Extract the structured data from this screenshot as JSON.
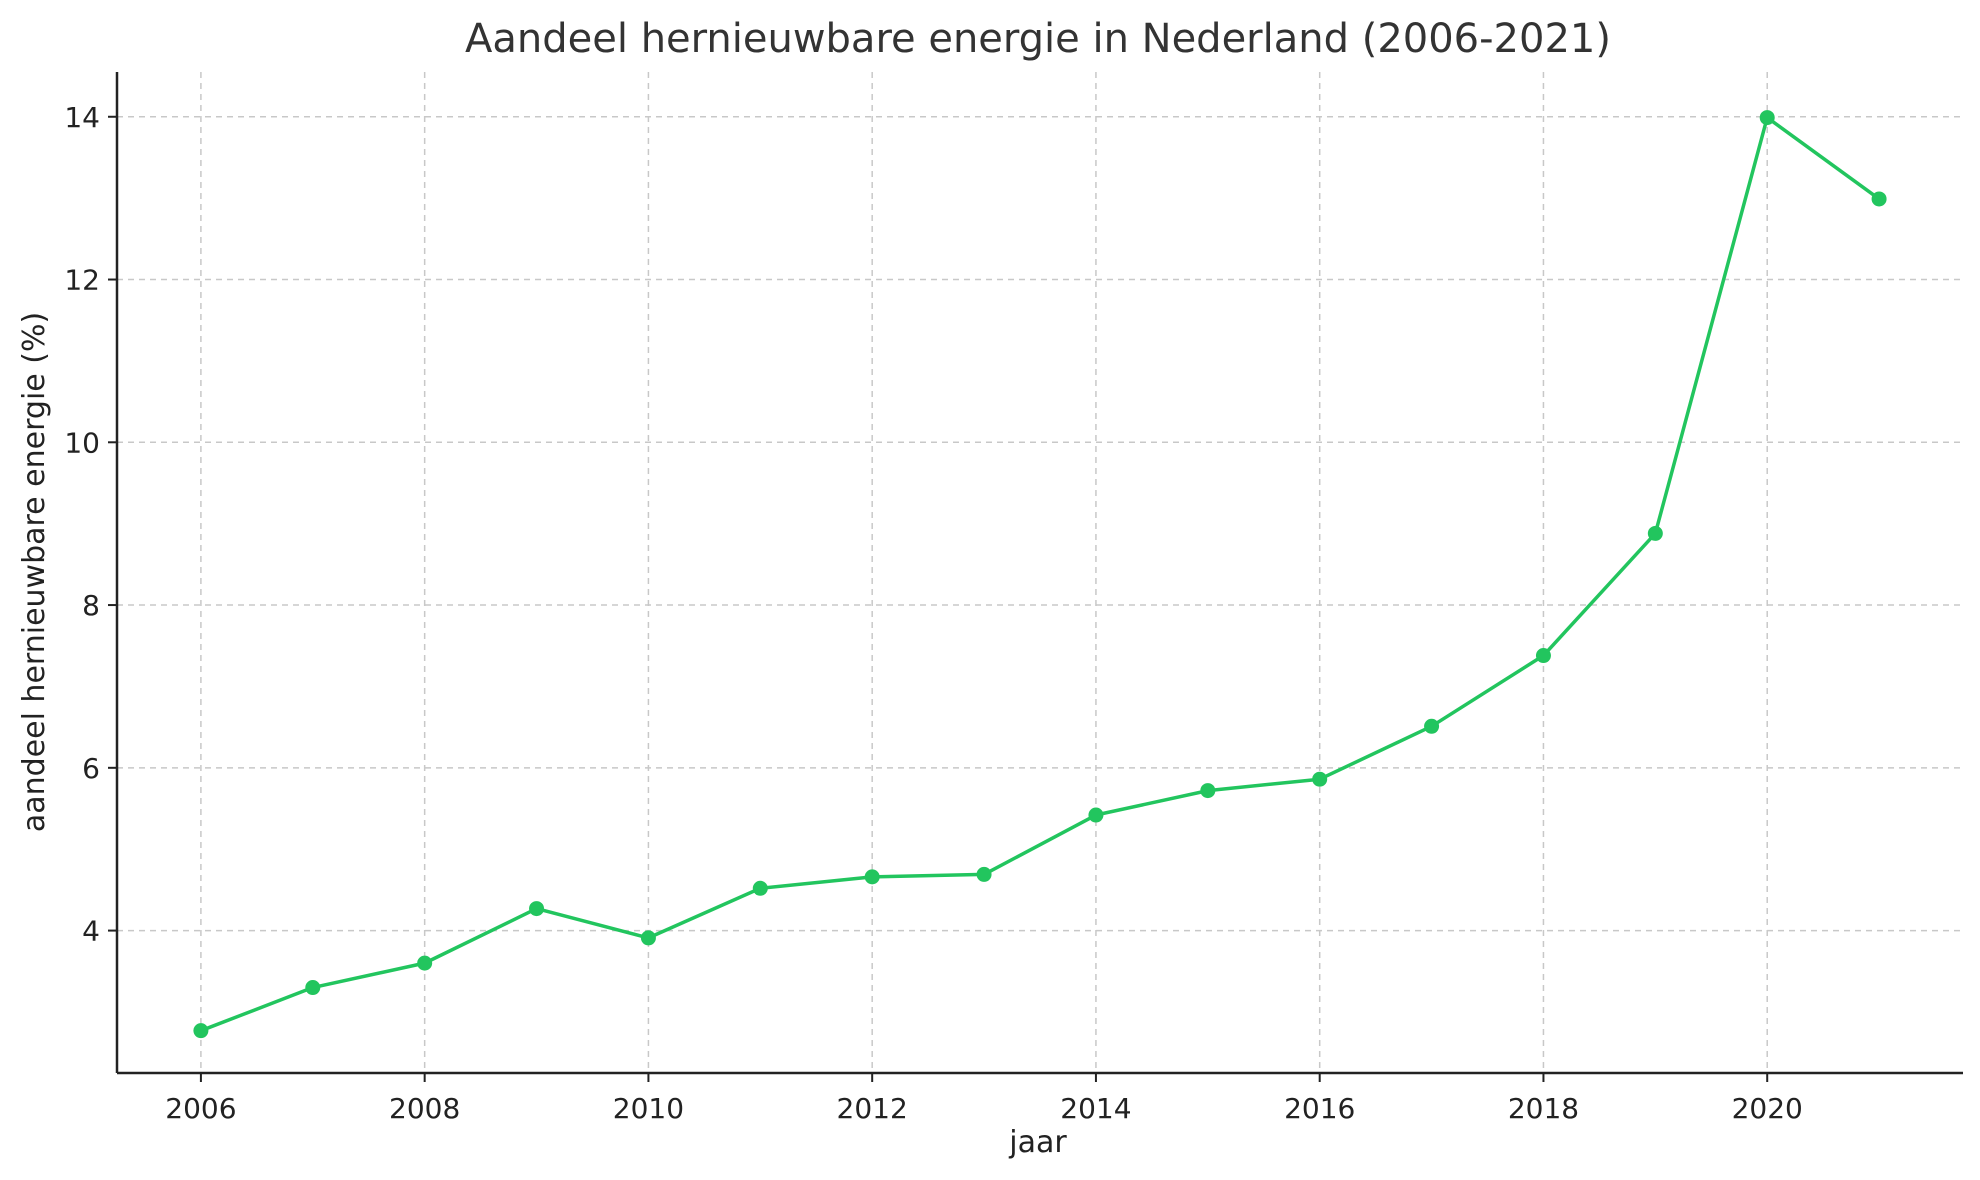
{
  "chart_data": {
    "type": "line",
    "title": "Aandeel hernieuwbare energie in Nederland (2006-2021)",
    "xlabel": "jaar",
    "ylabel": "aandeel hernieuwbare energie (%)",
    "x": [
      2006,
      2007,
      2008,
      2009,
      2010,
      2011,
      2012,
      2013,
      2014,
      2015,
      2016,
      2017,
      2018,
      2019,
      2020,
      2021
    ],
    "series": [
      {
        "values": [
          2.77,
          3.3,
          3.6,
          4.27,
          3.91,
          4.52,
          4.66,
          4.69,
          5.42,
          5.72,
          5.86,
          6.51,
          7.38,
          8.88,
          13.99,
          12.99
        ],
        "color": "#22c55e"
      }
    ],
    "xlim": [
      2005.25,
      2021.75
    ],
    "ylim": [
      2.25,
      14.55
    ],
    "xticks": [
      2006,
      2008,
      2010,
      2012,
      2014,
      2016,
      2018,
      2020
    ],
    "yticks": [
      4,
      6,
      8,
      10,
      12,
      14
    ],
    "grid": true,
    "marker": "circle"
  }
}
